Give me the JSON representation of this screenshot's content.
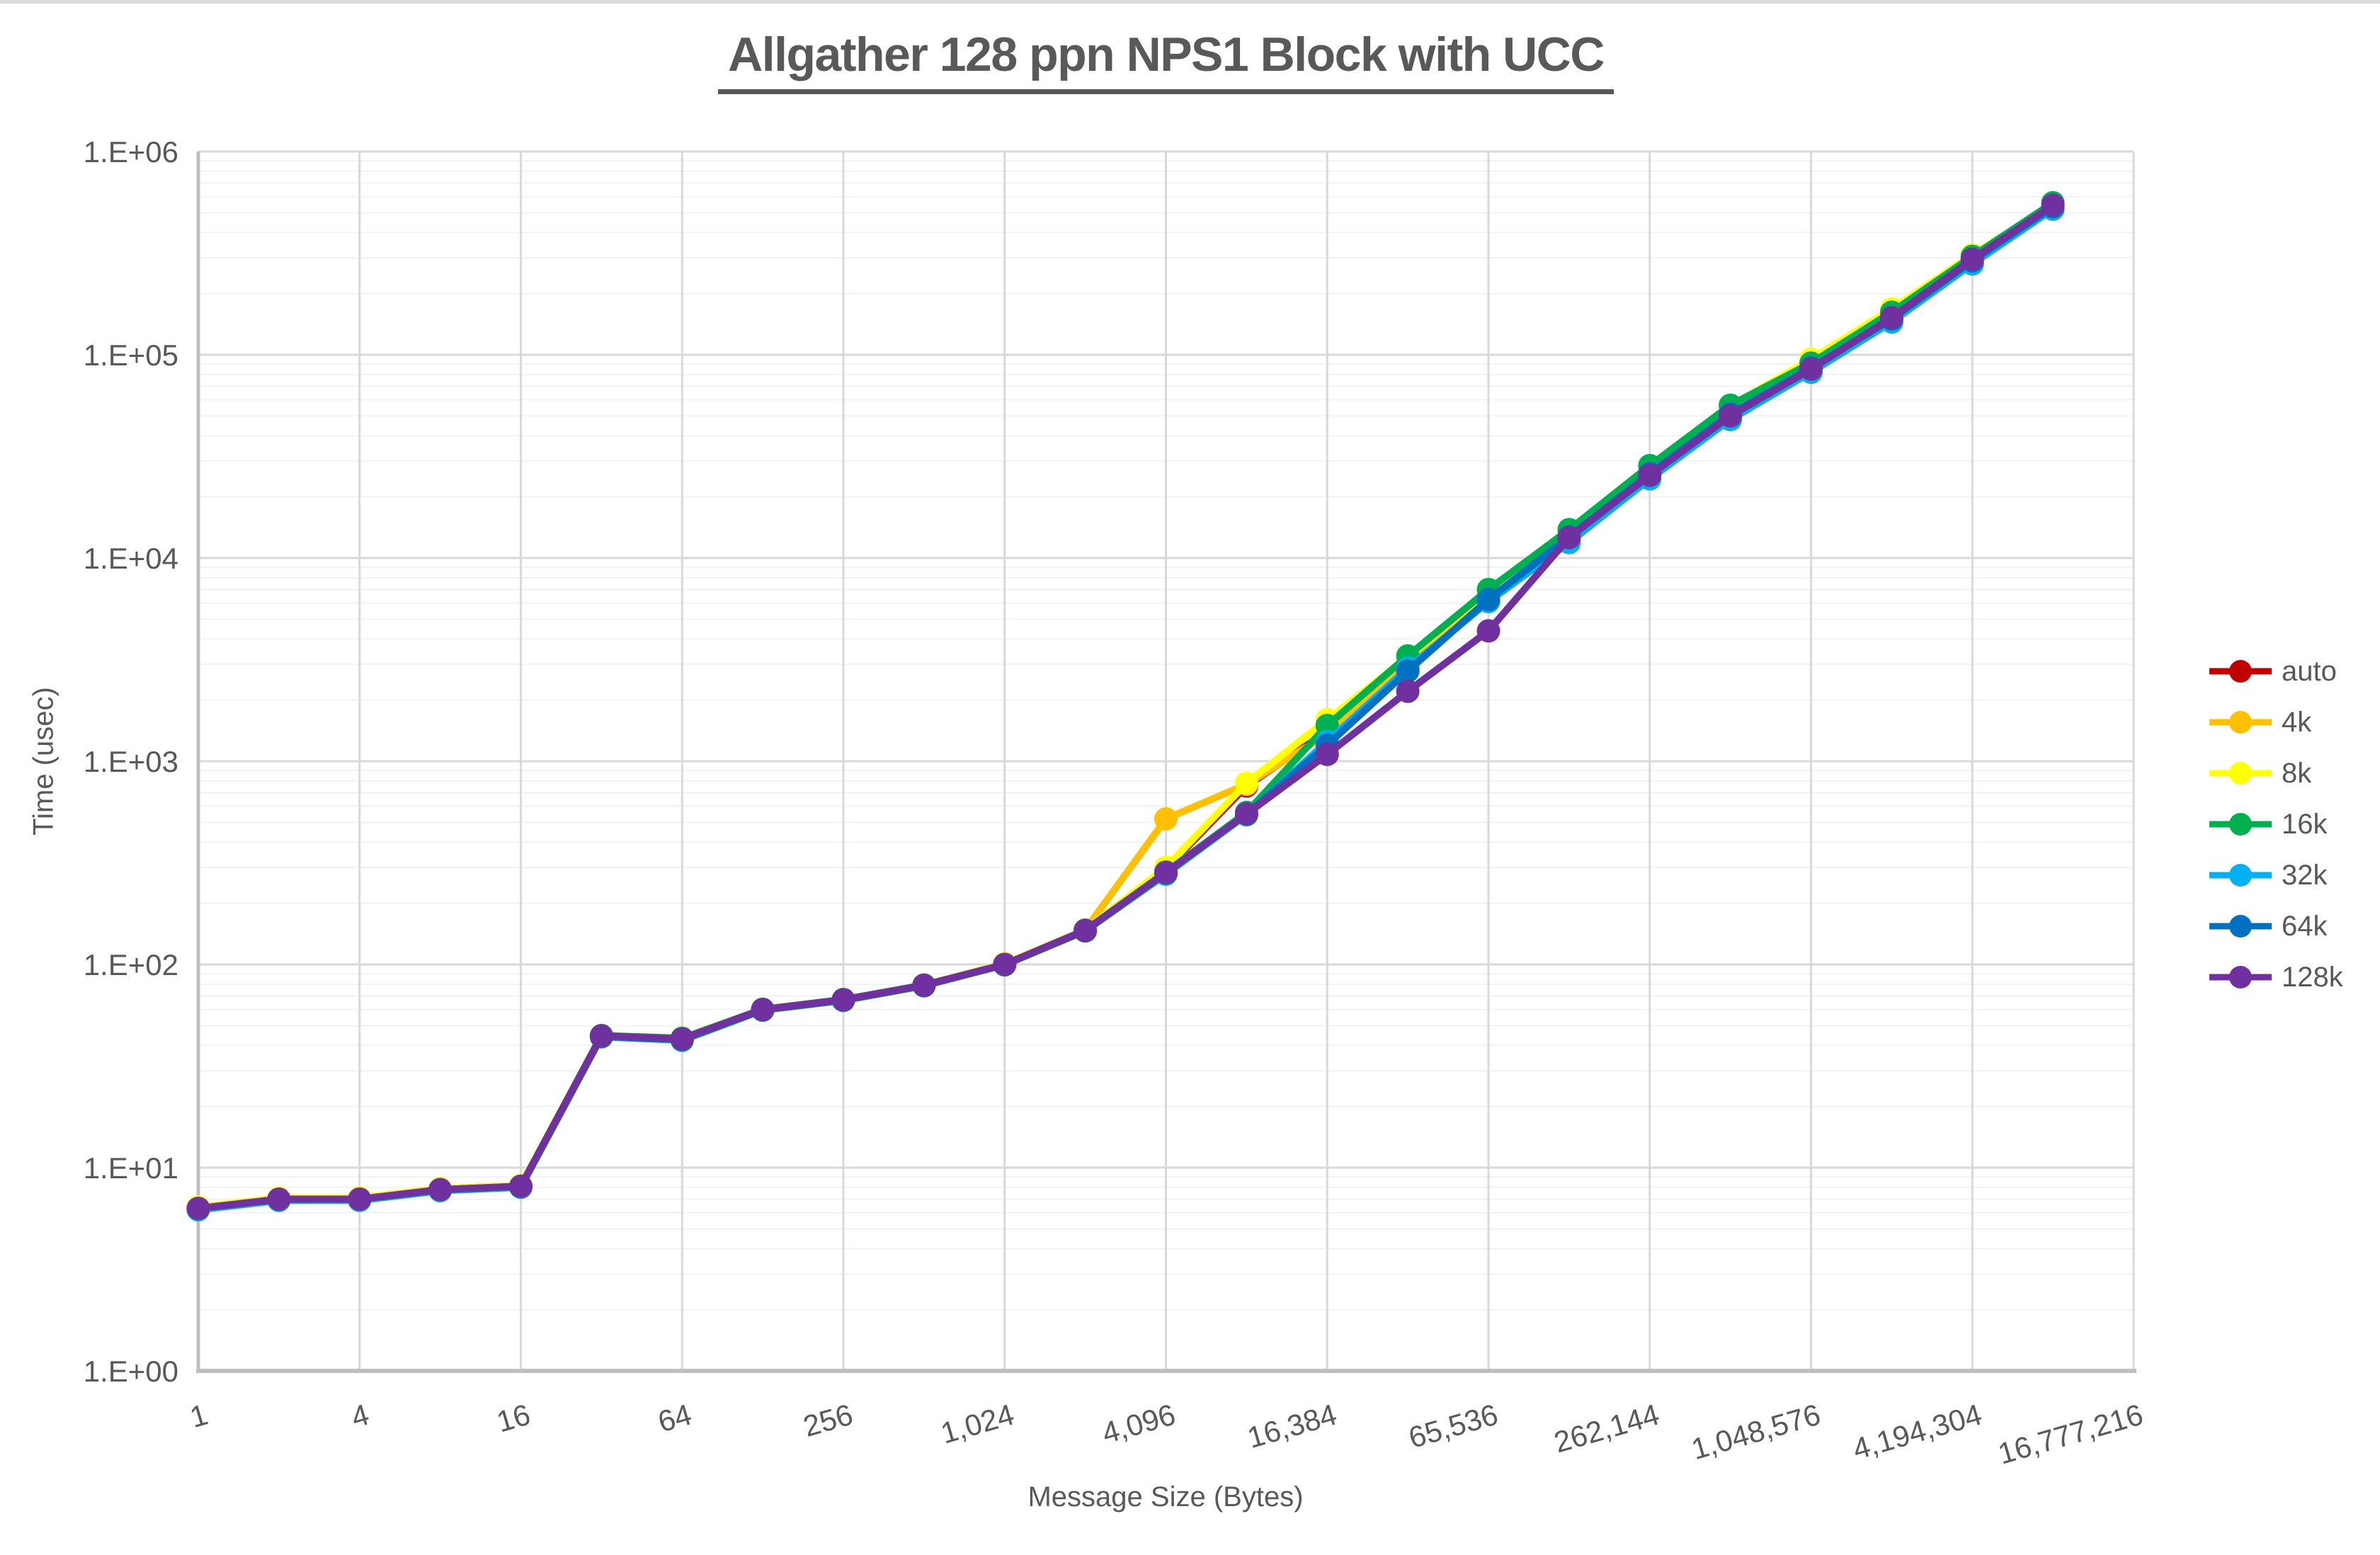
{
  "title": "Allgather 128 ppn NPS1 Block with UCC",
  "colors": {
    "title_text": "#595959",
    "axis_text": "#595959",
    "grid_minor": "#f2f2f2",
    "grid_major": "#d9d9d9",
    "axis_line": "#bfbfbf",
    "background": "#ffffff"
  },
  "chart_data": {
    "type": "line",
    "title": "Allgather 128 ppn NPS1 Block with UCC",
    "xlabel": "Message Size (Bytes)",
    "ylabel": "Time (usec)",
    "x_scale": "log2",
    "y_scale": "log10",
    "ylim": [
      1,
      1000000
    ],
    "xlim": [
      1,
      16777216
    ],
    "grid": "on",
    "legend_position": "right",
    "y_tick_labels": [
      "1.E+00",
      "1.E+01",
      "1.E+02",
      "1.E+03",
      "1.E+04",
      "1.E+05",
      "1.E+06"
    ],
    "x_tick_values": [
      1,
      4,
      16,
      64,
      256,
      1024,
      4096,
      16384,
      65536,
      262144,
      1048576,
      4194304,
      16777216
    ],
    "x_tick_labels": [
      "1",
      "4",
      "16",
      "64",
      "256",
      "1,024",
      "4,096",
      "16,384",
      "65,536",
      "262,144",
      "1,048,576",
      "4,194,304",
      "16,777,216"
    ],
    "x": [
      1,
      2,
      4,
      8,
      16,
      32,
      64,
      128,
      256,
      512,
      1024,
      2048,
      4096,
      8192,
      16384,
      32768,
      65536,
      131072,
      262144,
      524288,
      1048576,
      2097152,
      4194304,
      8388608
    ],
    "series": [
      {
        "name": "auto",
        "color": "#c00000",
        "values": [
          6.3,
          7.0,
          7.0,
          7.8,
          8.1,
          44.5,
          43.0,
          60.0,
          67.0,
          79.0,
          100,
          147,
          295,
          755,
          1400,
          3100,
          6600,
          13000,
          26800,
          53500,
          89000,
          158000,
          300000,
          540000
        ]
      },
      {
        "name": "4k",
        "color": "#ffc000",
        "values": [
          6.4,
          7.0,
          7.1,
          7.8,
          8.1,
          44.6,
          43.2,
          60.1,
          67.1,
          79.1,
          100,
          148,
          520,
          770,
          1360,
          3050,
          6750,
          13200,
          27000,
          54000,
          90000,
          160000,
          302000,
          542000
        ]
      },
      {
        "name": "8k",
        "color": "#ffff00",
        "values": [
          6.4,
          7.1,
          7.1,
          7.9,
          8.2,
          44.8,
          43.4,
          60.3,
          67.3,
          79.3,
          101,
          148,
          300,
          780,
          1600,
          3250,
          6900,
          13500,
          27500,
          56000,
          95000,
          168000,
          310000,
          548000
        ]
      },
      {
        "name": "16k",
        "color": "#00b050",
        "values": [
          6.3,
          7.0,
          7.0,
          7.8,
          8.1,
          44.7,
          43.3,
          60.2,
          67.2,
          79.2,
          100,
          147.5,
          285,
          560,
          1500,
          3300,
          7000,
          13800,
          28500,
          56500,
          91000,
          162000,
          305000,
          560000
        ]
      },
      {
        "name": "32k",
        "color": "#00b0f0",
        "values": [
          6.2,
          6.9,
          6.9,
          7.7,
          8.0,
          44.0,
          42.3,
          59.5,
          66.5,
          78.5,
          99.5,
          146,
          278,
          545,
          1250,
          2870,
          6100,
          11900,
          24500,
          48000,
          82000,
          145000,
          280000,
          520000
        ]
      },
      {
        "name": "64k",
        "color": "#0070c0",
        "values": [
          6.3,
          7.0,
          7.0,
          7.8,
          8.1,
          44.3,
          42.7,
          59.8,
          66.8,
          78.8,
          99.8,
          146.5,
          282,
          550,
          1200,
          2780,
          6250,
          12700,
          26000,
          51000,
          86000,
          150000,
          290000,
          535000
        ]
      },
      {
        "name": "128k",
        "color": "#7030a0",
        "values": [
          6.3,
          7.0,
          7.0,
          7.8,
          8.1,
          44.5,
          43.0,
          60.0,
          67.0,
          79.0,
          100,
          147,
          283,
          550,
          1080,
          2210,
          4380,
          12600,
          25500,
          50000,
          85000,
          152000,
          295000,
          545000
        ]
      }
    ]
  }
}
